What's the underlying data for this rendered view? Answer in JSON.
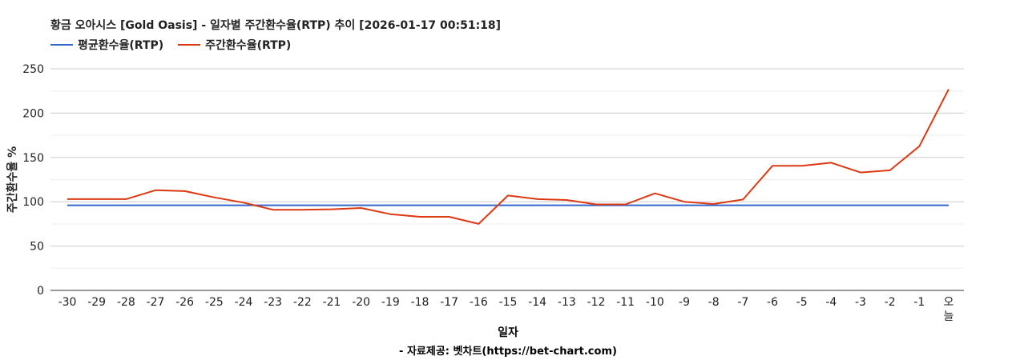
{
  "chart_data": {
    "type": "line",
    "title": "황금 오아시스 [Gold Oasis] - 일자별 주간환수율(RTP) 추이 [2026-01-17 00:51:18]",
    "xlabel": "일자",
    "ylabel": "주간환수율 %",
    "credit": "- 자료제공: 벳차트(https://bet-chart.com)",
    "ylim": [
      0,
      250
    ],
    "yticks": [
      0,
      50,
      100,
      150,
      200,
      250
    ],
    "grid": true,
    "legend_position": "top-left",
    "categories": [
      "-30",
      "-29",
      "-28",
      "-27",
      "-26",
      "-25",
      "-24",
      "-23",
      "-22",
      "-21",
      "-20",
      "-19",
      "-18",
      "-17",
      "-16",
      "-15",
      "-14",
      "-13",
      "-12",
      "-11",
      "-10",
      "-9",
      "-8",
      "-7",
      "-6",
      "-5",
      "-4",
      "-3",
      "-2",
      "-1",
      "오늘"
    ],
    "series": [
      {
        "name": "평균환수율(RTP)",
        "color": "#3366cc",
        "values": [
          96,
          96,
          96,
          96,
          96,
          96,
          96,
          96,
          96,
          96,
          96,
          96,
          96,
          96,
          96,
          96,
          96,
          96,
          96,
          96,
          96,
          96,
          96,
          96,
          96,
          96,
          96,
          96,
          96,
          96,
          96
        ]
      },
      {
        "name": "주간환수율(RTP)",
        "color": "#dc3912",
        "values": [
          103,
          103,
          103,
          113,
          112,
          105,
          99,
          91,
          91,
          91.5,
          93,
          86,
          83,
          83,
          75,
          107,
          103,
          102,
          97,
          97,
          109.5,
          100,
          97.5,
          102.5,
          140.5,
          140.5,
          144,
          133,
          135.5,
          162.5,
          227
        ]
      }
    ]
  }
}
